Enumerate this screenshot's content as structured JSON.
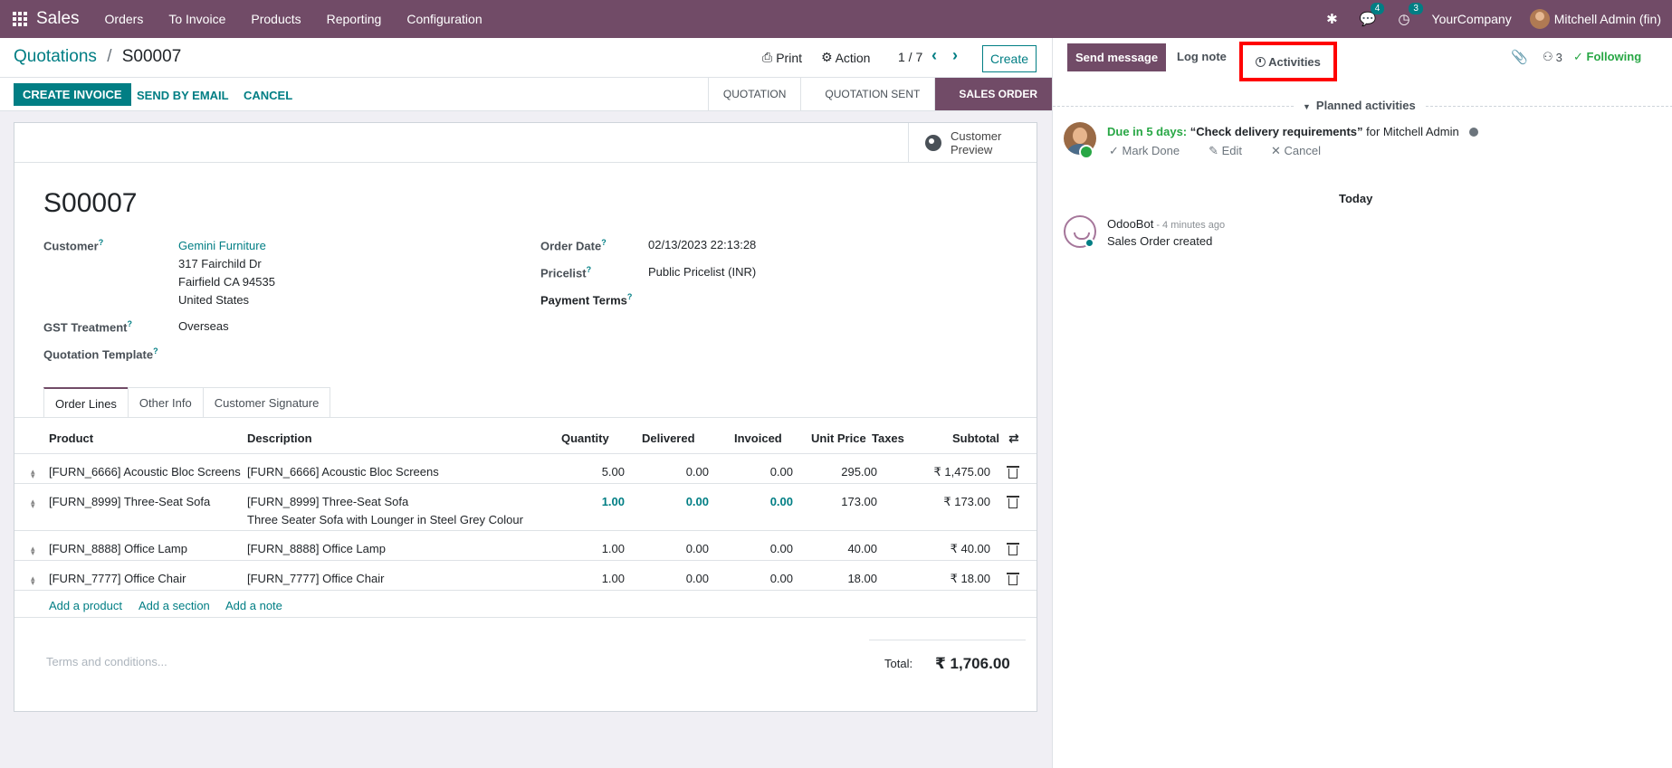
{
  "navbar": {
    "app_name": "Sales",
    "menu": [
      "Orders",
      "To Invoice",
      "Products",
      "Reporting",
      "Configuration"
    ],
    "messages_count": "4",
    "activities_count": "3",
    "company": "YourCompany",
    "user": "Mitchell Admin (fin)"
  },
  "control": {
    "breadcrumb_parent": "Quotations",
    "breadcrumb_sep": "/",
    "breadcrumb_current": "S00007",
    "print": "Print",
    "action": "Action",
    "pager": "1 / 7",
    "create": "Create"
  },
  "statusbar": {
    "create_invoice": "CREATE INVOICE",
    "send_email": "SEND BY EMAIL",
    "cancel": "CANCEL",
    "stages": [
      "QUOTATION",
      "QUOTATION SENT",
      "SALES ORDER"
    ]
  },
  "sheet": {
    "customer_preview": [
      "Customer",
      "Preview"
    ],
    "title": "S00007",
    "labels": {
      "customer": "Customer",
      "gst": "GST Treatment",
      "template": "Quotation Template",
      "order_date": "Order Date",
      "pricelist": "Pricelist",
      "payment_terms": "Payment Terms",
      "help": "?"
    },
    "customer_name": "Gemini Furniture",
    "address": [
      "317 Fairchild Dr",
      "Fairfield CA 94535",
      "United States"
    ],
    "gst_value": "Overseas",
    "order_date_value": "02/13/2023 22:13:28",
    "pricelist_value": "Public Pricelist (INR)"
  },
  "tabs": [
    "Order Lines",
    "Other Info",
    "Customer Signature"
  ],
  "table": {
    "headers": {
      "product": "Product",
      "description": "Description",
      "quantity": "Quantity",
      "delivered": "Delivered",
      "invoiced": "Invoiced",
      "unit_price": "Unit Price",
      "taxes": "Taxes",
      "subtotal": "Subtotal"
    },
    "rows": [
      {
        "product": "[FURN_6666] Acoustic Bloc Screens",
        "description": "[FURN_6666] Acoustic Bloc Screens",
        "description2": "",
        "quantity": "5.00",
        "delivered": "0.00",
        "invoiced": "0.00",
        "unit_price": "295.00",
        "subtotal": "₹ 1,475.00"
      },
      {
        "product": "[FURN_8999] Three-Seat Sofa",
        "description": "[FURN_8999] Three-Seat Sofa",
        "description2": "Three Seater Sofa with Lounger in Steel Grey Colour",
        "quantity": "1.00",
        "delivered": "0.00",
        "invoiced": "0.00",
        "unit_price": "173.00",
        "subtotal": "₹ 173.00"
      },
      {
        "product": "[FURN_8888] Office Lamp",
        "description": "[FURN_8888] Office Lamp",
        "description2": "",
        "quantity": "1.00",
        "delivered": "0.00",
        "invoiced": "0.00",
        "unit_price": "40.00",
        "subtotal": "₹ 40.00"
      },
      {
        "product": "[FURN_7777] Office Chair",
        "description": "[FURN_7777] Office Chair",
        "description2": "",
        "quantity": "1.00",
        "delivered": "0.00",
        "invoiced": "0.00",
        "unit_price": "18.00",
        "subtotal": "₹ 18.00"
      }
    ],
    "add_product": "Add a product",
    "add_section": "Add a section",
    "add_note": "Add a note"
  },
  "footer": {
    "terms_placeholder": "Terms and conditions...",
    "total_label": "Total:",
    "total_value": "₹ 1,706.00"
  },
  "chatter": {
    "send_message": "Send message",
    "log_note": "Log note",
    "activities": "Activities",
    "followers_count": "3",
    "following": "Following",
    "planned_activities": "Planned activities",
    "activity": {
      "due": "Due in 5 days:",
      "summary": "“Check delivery requirements”",
      "for": "for Mitchell Admin",
      "mark_done": "Mark Done",
      "edit": "Edit",
      "cancel": "Cancel"
    },
    "today": "Today",
    "message": {
      "author": "OdooBot",
      "time": "- 4 minutes ago",
      "body": "Sales Order created"
    }
  },
  "colors": {
    "brand": "#714b67",
    "accent": "#017e84",
    "following": "#28a745",
    "highlight_box": "#ff0000"
  }
}
